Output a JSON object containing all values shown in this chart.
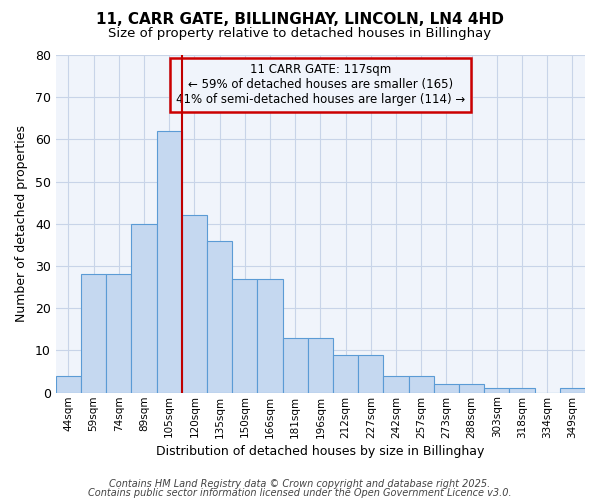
{
  "title_line1": "11, CARR GATE, BILLINGHAY, LINCOLN, LN4 4HD",
  "title_line2": "Size of property relative to detached houses in Billinghay",
  "xlabel": "Distribution of detached houses by size in Billinghay",
  "ylabel": "Number of detached properties",
  "annotation_line1": "11 CARR GATE: 117sqm",
  "annotation_line2": "← 59% of detached houses are smaller (165)",
  "annotation_line3": "41% of semi-detached houses are larger (114) →",
  "categories": [
    "44sqm",
    "59sqm",
    "74sqm",
    "89sqm",
    "105sqm",
    "120sqm",
    "135sqm",
    "150sqm",
    "166sqm",
    "181sqm",
    "196sqm",
    "212sqm",
    "227sqm",
    "242sqm",
    "257sqm",
    "273sqm",
    "288sqm",
    "303sqm",
    "318sqm",
    "334sqm",
    "349sqm"
  ],
  "values": [
    4,
    28,
    28,
    40,
    62,
    42,
    36,
    27,
    27,
    13,
    13,
    9,
    9,
    4,
    4,
    2,
    2,
    1,
    1,
    0,
    1
  ],
  "bar_color": "#c5d8f0",
  "bar_edge_color": "#5b9bd5",
  "vline_color": "#c00000",
  "vline_x_index": 5,
  "ylim": [
    0,
    80
  ],
  "yticks": [
    0,
    10,
    20,
    30,
    40,
    50,
    60,
    70,
    80
  ],
  "grid_color": "#c8d4e8",
  "bg_color": "#ffffff",
  "plot_bg_color": "#f0f4fb",
  "annotation_box_color": "#cc0000",
  "footer_line1": "Contains HM Land Registry data © Crown copyright and database right 2025.",
  "footer_line2": "Contains public sector information licensed under the Open Government Licence v3.0."
}
